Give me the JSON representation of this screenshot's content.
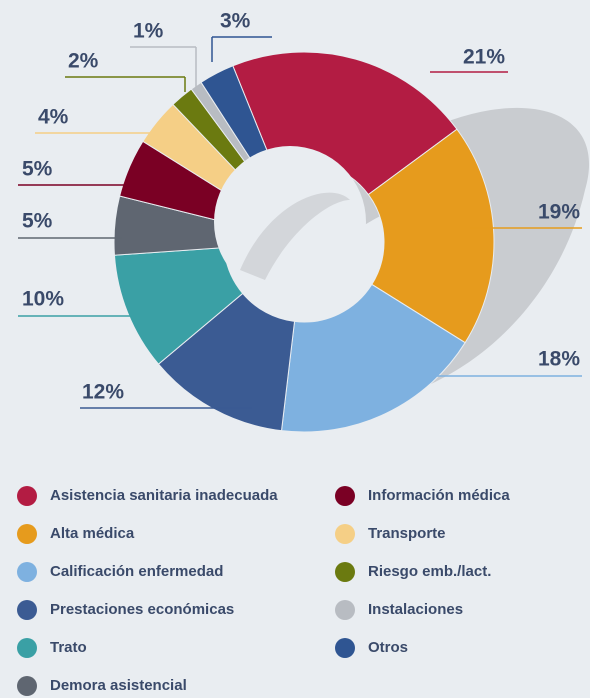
{
  "chart_data": {
    "type": "donut",
    "categories": [
      "Asistencia sanitaria inadecuada",
      "Alta médica",
      "Calificación enfermedad",
      "Prestaciones económicas",
      "Trato",
      "Demora asistencial",
      "Información médica",
      "Transporte",
      "Riesgo emb./lact.",
      "Instalaciones",
      "Otros"
    ],
    "values": [
      21,
      19,
      18,
      12,
      10,
      5,
      5,
      4,
      2,
      1,
      3
    ],
    "value_labels": [
      "21%",
      "19%",
      "18%",
      "12%",
      "10%",
      "5%",
      "5%",
      "4%",
      "2%",
      "1%",
      "3%"
    ],
    "colors": [
      "#b31c43",
      "#e69b1d",
      "#7eb1e0",
      "#3b5b93",
      "#3aa0a5",
      "#5f6671",
      "#7a0024",
      "#f5cf86",
      "#6b7a10",
      "#b8bcc2",
      "#2f5592"
    ]
  }
}
